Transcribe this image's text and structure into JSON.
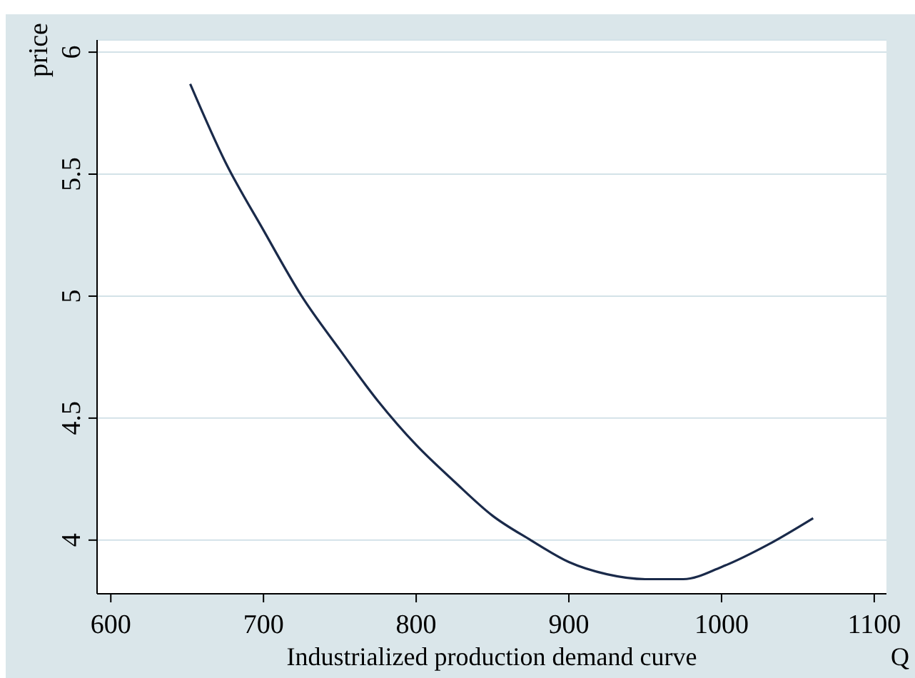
{
  "chart_data": {
    "type": "line",
    "title": "Industrialized production demand curve",
    "xlabel": "Q",
    "ylabel": "price",
    "x": [
      652,
      675,
      700,
      725,
      750,
      775,
      800,
      825,
      850,
      875,
      900,
      925,
      950,
      975,
      1000,
      1030,
      1060
    ],
    "series": [
      {
        "color": "#1a2a4a",
        "values": [
          5.87,
          5.55,
          5.27,
          5.0,
          4.78,
          4.57,
          4.39,
          4.24,
          4.1,
          4.0,
          3.91,
          3.86,
          3.84,
          3.84,
          3.89,
          3.98,
          4.09
        ]
      }
    ],
    "xlim": [
      591,
      1108
    ],
    "ylim": [
      3.78,
      6.05
    ],
    "xticks": [
      600,
      700,
      800,
      900,
      1000,
      1100
    ],
    "yticks": [
      4,
      4.5,
      5,
      5.5,
      6
    ],
    "grid": "y",
    "marker": "none",
    "line_style": "solid"
  }
}
